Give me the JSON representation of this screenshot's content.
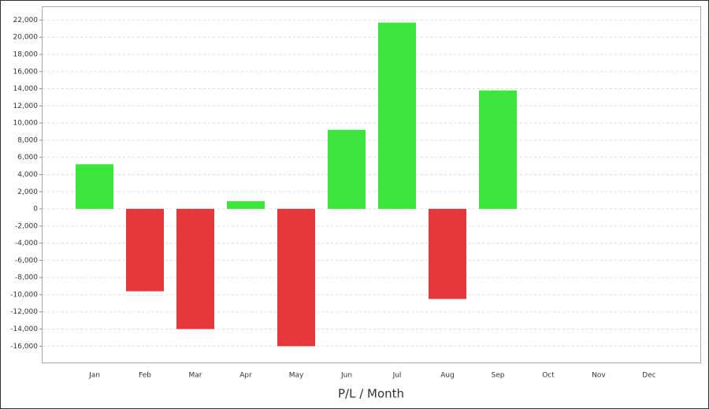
{
  "chart_data": {
    "type": "bar",
    "x_label": "P/L / Month",
    "categories": [
      "Jan",
      "Feb",
      "Mar",
      "Apr",
      "May",
      "Jun",
      "Jul",
      "Aug",
      "Sep",
      "Oct",
      "Nov",
      "Dec"
    ],
    "values": [
      5200,
      -9600,
      -14000,
      900,
      -16000,
      9200,
      21700,
      -10500,
      13800,
      null,
      null,
      null
    ],
    "positive_color": "#3de63d",
    "negative_color": "#e6373d",
    "ylim": [
      -17900,
      23600
    ],
    "yticks": [
      {
        "value": -16000,
        "label": "-16,000"
      },
      {
        "value": -14000,
        "label": "-14,000"
      },
      {
        "value": -12000,
        "label": "-12,000"
      },
      {
        "value": -10000,
        "label": "-10,000"
      },
      {
        "value": -8000,
        "label": "-8,000"
      },
      {
        "value": -6000,
        "label": "-6,000"
      },
      {
        "value": -4000,
        "label": "-4,000"
      },
      {
        "value": -2000,
        "label": "-2,000"
      },
      0,
      {
        "value": 2000,
        "label": "2,000"
      },
      {
        "value": 4000,
        "label": "4,000"
      },
      {
        "value": 6000,
        "label": "6,000"
      },
      {
        "value": 8000,
        "label": "8,000"
      },
      {
        "value": 10000,
        "label": "10,000"
      },
      {
        "value": 12000,
        "label": "12,000"
      },
      {
        "value": 14000,
        "label": "14,000"
      },
      {
        "value": 16000,
        "label": "16,000"
      },
      {
        "value": 18000,
        "label": "18,000"
      },
      {
        "value": 20000,
        "label": "20,000"
      },
      {
        "value": 22000,
        "label": "22,000"
      }
    ],
    "grid": true
  }
}
